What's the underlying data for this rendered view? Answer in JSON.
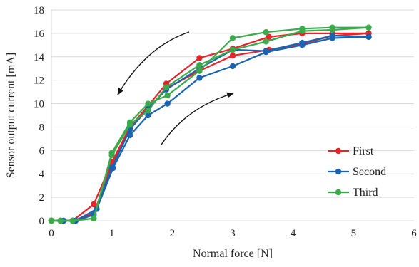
{
  "chart_data": {
    "type": "line",
    "xlabel": "Normal force [N]",
    "ylabel": "Sensor output current  [mA]",
    "xlim": [
      0,
      6
    ],
    "ylim": [
      0,
      18
    ],
    "xticks": [
      "0",
      "1",
      "2",
      "3",
      "4",
      "5",
      "6"
    ],
    "yticks": [
      "0",
      "2",
      "4",
      "6",
      "8",
      "10",
      "12",
      "14",
      "16",
      "18"
    ],
    "grid": "horizontal",
    "legend_position": "right",
    "arrows": [
      "loading arrow (lower right, pointing up-right)",
      "unloading arrow (upper left, pointing down-left)"
    ],
    "series": [
      {
        "name": "First",
        "color": "#e8232a",
        "loading": [
          [
            0,
            0
          ],
          [
            0.15,
            0
          ],
          [
            0.35,
            0
          ],
          [
            0.7,
            0.6
          ],
          [
            1.0,
            4.8
          ],
          [
            1.3,
            7.9
          ],
          [
            1.6,
            9.5
          ],
          [
            1.9,
            11.3
          ],
          [
            2.45,
            12.8
          ],
          [
            3.0,
            14.1
          ],
          [
            3.6,
            14.6
          ],
          [
            4.15,
            15.1
          ],
          [
            4.65,
            15.8
          ],
          [
            5.25,
            16.0
          ]
        ],
        "unloading": [
          [
            5.25,
            16.0
          ],
          [
            4.65,
            16.0
          ],
          [
            4.15,
            16.0
          ],
          [
            3.6,
            15.7
          ],
          [
            3.0,
            14.7
          ],
          [
            2.45,
            13.9
          ],
          [
            1.9,
            11.7
          ],
          [
            1.6,
            9.8
          ],
          [
            1.3,
            8.0
          ],
          [
            1.0,
            5.0
          ],
          [
            0.7,
            1.4
          ],
          [
            0.35,
            0
          ],
          [
            0.15,
            0
          ],
          [
            0,
            0
          ]
        ]
      },
      {
        "name": "Second",
        "color": "#1a63b0",
        "loading": [
          [
            0,
            0
          ],
          [
            0.2,
            0
          ],
          [
            0.4,
            0
          ],
          [
            0.75,
            1.0
          ],
          [
            1.02,
            4.5
          ],
          [
            1.3,
            7.3
          ],
          [
            1.6,
            9.0
          ],
          [
            1.92,
            10.0
          ],
          [
            2.45,
            12.2
          ],
          [
            3.0,
            13.2
          ],
          [
            3.55,
            14.4
          ],
          [
            4.15,
            15.0
          ],
          [
            4.65,
            15.6
          ],
          [
            5.25,
            15.7
          ]
        ],
        "unloading": [
          [
            5.25,
            15.7
          ],
          [
            4.65,
            15.8
          ],
          [
            4.15,
            15.2
          ],
          [
            3.55,
            14.5
          ],
          [
            3.0,
            14.6
          ],
          [
            2.45,
            13.0
          ],
          [
            1.9,
            11.2
          ],
          [
            1.6,
            9.6
          ],
          [
            1.3,
            7.8
          ],
          [
            1.0,
            4.5
          ],
          [
            0.7,
            0.5
          ],
          [
            0.4,
            0
          ],
          [
            0.2,
            0
          ],
          [
            0,
            0
          ]
        ]
      },
      {
        "name": "Third",
        "color": "#3aaa4a",
        "loading": [
          [
            0,
            0
          ],
          [
            0.15,
            0
          ],
          [
            0.35,
            0
          ],
          [
            0.7,
            0.2
          ],
          [
            1.0,
            5.8
          ],
          [
            1.3,
            8.4
          ],
          [
            1.6,
            10.0
          ],
          [
            1.92,
            10.7
          ],
          [
            2.45,
            12.8
          ],
          [
            3.0,
            15.6
          ],
          [
            3.55,
            16.1
          ],
          [
            4.15,
            16.4
          ],
          [
            4.65,
            16.5
          ],
          [
            5.25,
            16.5
          ]
        ],
        "unloading": [
          [
            5.25,
            16.5
          ],
          [
            4.65,
            16.3
          ],
          [
            4.15,
            16.2
          ],
          [
            3.55,
            15.3
          ],
          [
            3.0,
            14.6
          ],
          [
            2.45,
            13.3
          ],
          [
            1.9,
            11.4
          ],
          [
            1.6,
            9.4
          ],
          [
            1.3,
            8.2
          ],
          [
            1.0,
            5.6
          ],
          [
            0.7,
            0.2
          ],
          [
            0.35,
            0
          ],
          [
            0.15,
            0
          ],
          [
            0,
            0
          ]
        ]
      }
    ]
  }
}
